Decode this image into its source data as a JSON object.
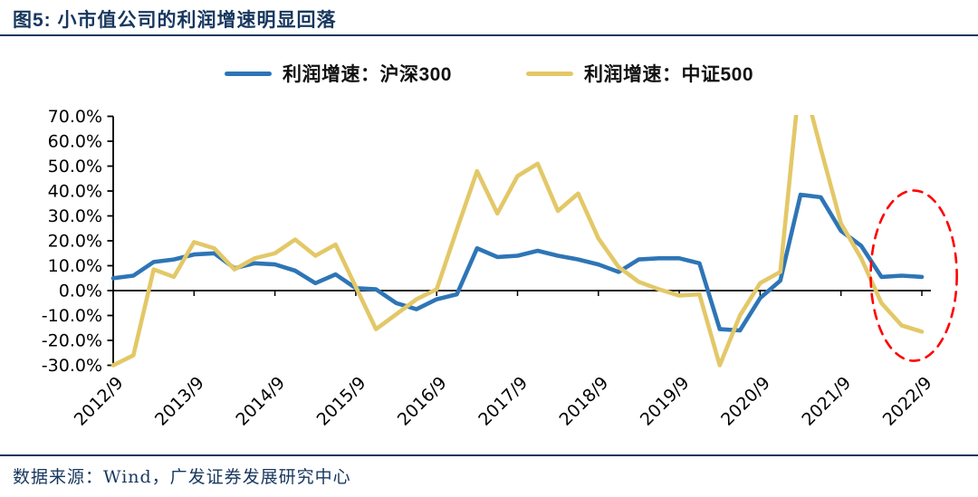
{
  "header": {
    "title": "图5:  小市值公司的利润增速明显回落"
  },
  "legend": {
    "items": [
      {
        "label": "利润增速：沪深300",
        "color": "#2E75B6"
      },
      {
        "label": "利润增速：中证500",
        "color": "#E3C868"
      }
    ]
  },
  "footer": {
    "source": "数据来源：Wind，广发证券发展研究中心"
  },
  "colors": {
    "hs300_line": "#2E75B6",
    "zz500_line": "#E3C868",
    "axis": "#000000",
    "navy_text": "#17375E",
    "annotation_red": "#FF0000"
  },
  "chart_data": {
    "type": "line",
    "title": "",
    "xlabel": "",
    "ylabel": "",
    "ylim": [
      -30,
      70
    ],
    "y_tick_step": 10,
    "y_tick_labels": [
      "70.0%",
      "60.0%",
      "50.0%",
      "40.0%",
      "30.0%",
      "20.0%",
      "10.0%",
      "0.0%",
      "-10.0%",
      "-20.0%",
      "-30.0%"
    ],
    "x_tick_labels": [
      "2012/9",
      "2013/9",
      "2014/9",
      "2015/9",
      "2016/9",
      "2017/9",
      "2018/9",
      "2019/9",
      "2020/9",
      "2021/9",
      "2022/9"
    ],
    "categories": [
      "2012/9",
      "2012/12",
      "2013/3",
      "2013/6",
      "2013/9",
      "2013/12",
      "2014/3",
      "2014/6",
      "2014/9",
      "2014/12",
      "2015/3",
      "2015/6",
      "2015/9",
      "2015/12",
      "2016/3",
      "2016/6",
      "2016/9",
      "2016/12",
      "2017/3",
      "2017/6",
      "2017/9",
      "2017/12",
      "2018/3",
      "2018/6",
      "2018/9",
      "2018/12",
      "2019/3",
      "2019/6",
      "2019/9",
      "2019/12",
      "2020/3",
      "2020/6",
      "2020/9",
      "2020/12",
      "2021/3",
      "2021/6",
      "2021/9",
      "2021/12",
      "2022/3",
      "2022/6",
      "2022/9"
    ],
    "series": [
      {
        "name": "利润增速：沪深300",
        "color": "#2E75B6",
        "values": [
          5,
          6,
          11.5,
          12.5,
          14.5,
          15,
          9,
          11,
          10.5,
          8,
          3,
          6.5,
          1,
          0.5,
          -5,
          -7.5,
          -3.5,
          -1.5,
          17,
          13.5,
          14,
          16,
          14,
          12.5,
          10.5,
          7.5,
          12.5,
          13,
          13,
          11,
          -15.5,
          -16,
          -3,
          4,
          38.5,
          37.5,
          24,
          18,
          5.5,
          6,
          5.5
        ]
      },
      {
        "name": "利润增速：中证500",
        "color": "#E3C868",
        "values": [
          -30,
          -26,
          8.5,
          5.5,
          19.5,
          17,
          8.5,
          13,
          15,
          20.5,
          14,
          18.5,
          1.5,
          -15.5,
          -9.5,
          -3.5,
          0.5,
          24.5,
          48,
          31,
          46,
          51,
          32,
          39,
          21,
          9.5,
          3.5,
          0.5,
          -2,
          -1.5,
          -30,
          -10,
          3,
          7.5,
          88,
          57,
          27,
          13,
          -5,
          -14,
          -16.5
        ]
      }
    ],
    "notes": {
      "clipping": "中证500 2021/3 peak exceeds the 70% axis maximum and is clipped at the plot top",
      "zero_axis": "black horizontal axis drawn at 0.0%"
    },
    "legend_position": "top-center",
    "grid": false,
    "annotations": [
      {
        "shape": "ellipse",
        "style": "dashed",
        "color": "#FF0000",
        "cx_index": 39.6,
        "cy_value": 6,
        "rx_quarters": 2.13,
        "ry_percent": 34.2
      }
    ]
  }
}
